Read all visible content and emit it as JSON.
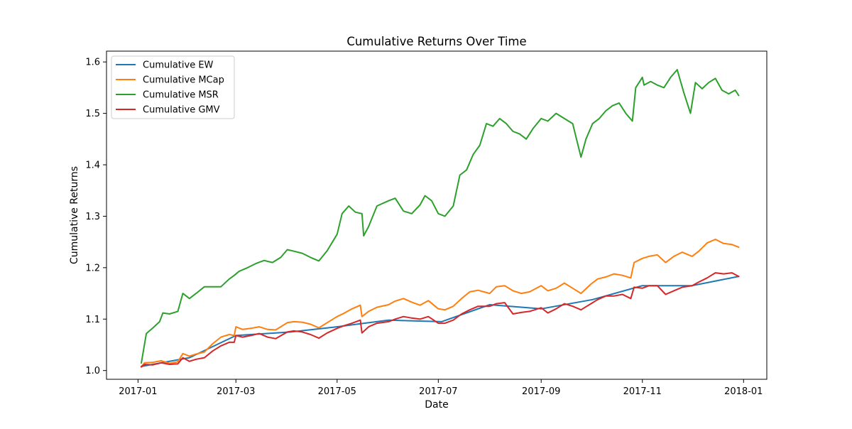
{
  "chart_data": {
    "type": "line",
    "title": "Cumulative Returns Over Time",
    "xlabel": "Date",
    "ylabel": "Cumulative Returns",
    "xlim": [
      "2016-12-13",
      "2018-01-15"
    ],
    "ylim": [
      0.983,
      1.621
    ],
    "x_ticks": [
      "2017-01",
      "2017-03",
      "2017-05",
      "2017-07",
      "2017-09",
      "2017-11",
      "2018-01"
    ],
    "y_ticks": [
      1.0,
      1.1,
      1.2,
      1.3,
      1.4,
      1.5,
      1.6
    ],
    "y_tick_labels": [
      "1.0",
      "1.1",
      "1.2",
      "1.3",
      "1.4",
      "1.5",
      "1.6"
    ],
    "grid": false,
    "legend_position": "top-left",
    "series": [
      {
        "name": "Cumulative EW",
        "color": "#1f77b4",
        "points": [
          [
            "2017-01-03",
            1.008
          ],
          [
            "2017-02-01",
            1.025
          ],
          [
            "2017-03-01",
            1.068
          ],
          [
            "2017-04-03",
            1.075
          ],
          [
            "2017-05-01",
            1.085
          ],
          [
            "2017-06-01",
            1.098
          ],
          [
            "2017-07-03",
            1.095
          ],
          [
            "2017-08-01",
            1.128
          ],
          [
            "2017-09-01",
            1.12
          ],
          [
            "2017-10-02",
            1.138
          ],
          [
            "2017-11-01",
            1.165
          ],
          [
            "2017-12-01",
            1.165
          ],
          [
            "2017-12-29",
            1.183
          ]
        ]
      },
      {
        "name": "Cumulative MCap",
        "color": "#ff7f0e",
        "points": [
          [
            "2017-01-03",
            1.008
          ],
          [
            "2017-01-05",
            1.015
          ],
          [
            "2017-01-10",
            1.016
          ],
          [
            "2017-01-15",
            1.019
          ],
          [
            "2017-01-20",
            1.014
          ],
          [
            "2017-01-25",
            1.017
          ],
          [
            "2017-01-28",
            1.033
          ],
          [
            "2017-02-01",
            1.028
          ],
          [
            "2017-02-05",
            1.032
          ],
          [
            "2017-02-10",
            1.036
          ],
          [
            "2017-02-15",
            1.052
          ],
          [
            "2017-02-20",
            1.065
          ],
          [
            "2017-02-25",
            1.07
          ],
          [
            "2017-02-28",
            1.068
          ],
          [
            "2017-03-01",
            1.085
          ],
          [
            "2017-03-05",
            1.08
          ],
          [
            "2017-03-10",
            1.082
          ],
          [
            "2017-03-15",
            1.085
          ],
          [
            "2017-03-20",
            1.08
          ],
          [
            "2017-03-25",
            1.079
          ],
          [
            "2017-04-01",
            1.093
          ],
          [
            "2017-04-05",
            1.095
          ],
          [
            "2017-04-10",
            1.094
          ],
          [
            "2017-04-15",
            1.09
          ],
          [
            "2017-04-20",
            1.083
          ],
          [
            "2017-04-25",
            1.093
          ],
          [
            "2017-05-01",
            1.105
          ],
          [
            "2017-05-05",
            1.111
          ],
          [
            "2017-05-10",
            1.12
          ],
          [
            "2017-05-15",
            1.127
          ],
          [
            "2017-05-16",
            1.105
          ],
          [
            "2017-05-20",
            1.115
          ],
          [
            "2017-05-25",
            1.123
          ],
          [
            "2017-06-01",
            1.128
          ],
          [
            "2017-06-05",
            1.135
          ],
          [
            "2017-06-10",
            1.14
          ],
          [
            "2017-06-15",
            1.133
          ],
          [
            "2017-06-20",
            1.127
          ],
          [
            "2017-06-25",
            1.136
          ],
          [
            "2017-07-01",
            1.12
          ],
          [
            "2017-07-05",
            1.118
          ],
          [
            "2017-07-10",
            1.125
          ],
          [
            "2017-07-15",
            1.14
          ],
          [
            "2017-07-20",
            1.153
          ],
          [
            "2017-07-25",
            1.156
          ],
          [
            "2017-08-01",
            1.15
          ],
          [
            "2017-08-05",
            1.163
          ],
          [
            "2017-08-10",
            1.165
          ],
          [
            "2017-08-15",
            1.155
          ],
          [
            "2017-08-20",
            1.15
          ],
          [
            "2017-08-25",
            1.153
          ],
          [
            "2017-09-01",
            1.165
          ],
          [
            "2017-09-05",
            1.155
          ],
          [
            "2017-09-10",
            1.16
          ],
          [
            "2017-09-15",
            1.17
          ],
          [
            "2017-09-20",
            1.16
          ],
          [
            "2017-09-25",
            1.15
          ],
          [
            "2017-10-01",
            1.168
          ],
          [
            "2017-10-05",
            1.178
          ],
          [
            "2017-10-10",
            1.182
          ],
          [
            "2017-10-15",
            1.188
          ],
          [
            "2017-10-20",
            1.185
          ],
          [
            "2017-10-25",
            1.18
          ],
          [
            "2017-10-27",
            1.21
          ],
          [
            "2017-11-01",
            1.218
          ],
          [
            "2017-11-05",
            1.222
          ],
          [
            "2017-11-10",
            1.225
          ],
          [
            "2017-11-15",
            1.21
          ],
          [
            "2017-11-20",
            1.222
          ],
          [
            "2017-11-25",
            1.23
          ],
          [
            "2017-12-01",
            1.222
          ],
          [
            "2017-12-05",
            1.232
          ],
          [
            "2017-12-10",
            1.248
          ],
          [
            "2017-12-15",
            1.255
          ],
          [
            "2017-12-20",
            1.247
          ],
          [
            "2017-12-25",
            1.245
          ],
          [
            "2017-12-29",
            1.24
          ]
        ]
      },
      {
        "name": "Cumulative MSR",
        "color": "#2ca02c",
        "points": [
          [
            "2017-01-03",
            1.015
          ],
          [
            "2017-01-06",
            1.072
          ],
          [
            "2017-01-10",
            1.083
          ],
          [
            "2017-01-14",
            1.095
          ],
          [
            "2017-01-16",
            1.112
          ],
          [
            "2017-01-20",
            1.11
          ],
          [
            "2017-01-25",
            1.115
          ],
          [
            "2017-01-28",
            1.15
          ],
          [
            "2017-02-01",
            1.14
          ],
          [
            "2017-02-05",
            1.15
          ],
          [
            "2017-02-10",
            1.163
          ],
          [
            "2017-02-15",
            1.163
          ],
          [
            "2017-02-20",
            1.163
          ],
          [
            "2017-02-25",
            1.178
          ],
          [
            "2017-02-28",
            1.185
          ],
          [
            "2017-03-03",
            1.193
          ],
          [
            "2017-03-08",
            1.2
          ],
          [
            "2017-03-13",
            1.208
          ],
          [
            "2017-03-18",
            1.214
          ],
          [
            "2017-03-23",
            1.21
          ],
          [
            "2017-03-28",
            1.22
          ],
          [
            "2017-04-01",
            1.235
          ],
          [
            "2017-04-05",
            1.232
          ],
          [
            "2017-04-10",
            1.228
          ],
          [
            "2017-04-15",
            1.22
          ],
          [
            "2017-04-20",
            1.213
          ],
          [
            "2017-04-25",
            1.233
          ],
          [
            "2017-05-01",
            1.265
          ],
          [
            "2017-05-04",
            1.305
          ],
          [
            "2017-05-08",
            1.32
          ],
          [
            "2017-05-12",
            1.308
          ],
          [
            "2017-05-16",
            1.305
          ],
          [
            "2017-05-17",
            1.262
          ],
          [
            "2017-05-20",
            1.28
          ],
          [
            "2017-05-25",
            1.32
          ],
          [
            "2017-06-01",
            1.33
          ],
          [
            "2017-06-05",
            1.335
          ],
          [
            "2017-06-10",
            1.31
          ],
          [
            "2017-06-15",
            1.305
          ],
          [
            "2017-06-20",
            1.322
          ],
          [
            "2017-06-23",
            1.34
          ],
          [
            "2017-06-27",
            1.33
          ],
          [
            "2017-07-01",
            1.305
          ],
          [
            "2017-07-05",
            1.3
          ],
          [
            "2017-07-10",
            1.32
          ],
          [
            "2017-07-14",
            1.38
          ],
          [
            "2017-07-18",
            1.39
          ],
          [
            "2017-07-22",
            1.42
          ],
          [
            "2017-07-26",
            1.438
          ],
          [
            "2017-07-30",
            1.48
          ],
          [
            "2017-08-03",
            1.475
          ],
          [
            "2017-08-07",
            1.49
          ],
          [
            "2017-08-11",
            1.48
          ],
          [
            "2017-08-15",
            1.465
          ],
          [
            "2017-08-19",
            1.46
          ],
          [
            "2017-08-23",
            1.45
          ],
          [
            "2017-08-27",
            1.47
          ],
          [
            "2017-09-01",
            1.49
          ],
          [
            "2017-09-05",
            1.485
          ],
          [
            "2017-09-10",
            1.5
          ],
          [
            "2017-09-15",
            1.49
          ],
          [
            "2017-09-20",
            1.48
          ],
          [
            "2017-09-25",
            1.415
          ],
          [
            "2017-09-28",
            1.45
          ],
          [
            "2017-10-02",
            1.48
          ],
          [
            "2017-10-06",
            1.49
          ],
          [
            "2017-10-10",
            1.505
          ],
          [
            "2017-10-14",
            1.515
          ],
          [
            "2017-10-18",
            1.52
          ],
          [
            "2017-10-22",
            1.5
          ],
          [
            "2017-10-26",
            1.485
          ],
          [
            "2017-10-28",
            1.55
          ],
          [
            "2017-11-01",
            1.57
          ],
          [
            "2017-11-02",
            1.555
          ],
          [
            "2017-11-06",
            1.562
          ],
          [
            "2017-11-10",
            1.555
          ],
          [
            "2017-11-14",
            1.55
          ],
          [
            "2017-11-18",
            1.57
          ],
          [
            "2017-11-22",
            1.585
          ],
          [
            "2017-11-26",
            1.54
          ],
          [
            "2017-11-30",
            1.5
          ],
          [
            "2017-12-03",
            1.56
          ],
          [
            "2017-12-07",
            1.548
          ],
          [
            "2017-12-11",
            1.56
          ],
          [
            "2017-12-15",
            1.568
          ],
          [
            "2017-12-19",
            1.545
          ],
          [
            "2017-12-23",
            1.538
          ],
          [
            "2017-12-27",
            1.545
          ],
          [
            "2017-12-29",
            1.535
          ]
        ]
      },
      {
        "name": "Cumulative GMV",
        "color": "#d62728",
        "points": [
          [
            "2017-01-03",
            1.007
          ],
          [
            "2017-01-05",
            1.012
          ],
          [
            "2017-01-10",
            1.011
          ],
          [
            "2017-01-15",
            1.015
          ],
          [
            "2017-01-20",
            1.012
          ],
          [
            "2017-01-25",
            1.013
          ],
          [
            "2017-01-28",
            1.025
          ],
          [
            "2017-02-01",
            1.018
          ],
          [
            "2017-02-05",
            1.022
          ],
          [
            "2017-02-10",
            1.025
          ],
          [
            "2017-02-15",
            1.038
          ],
          [
            "2017-02-20",
            1.048
          ],
          [
            "2017-02-25",
            1.055
          ],
          [
            "2017-02-28",
            1.055
          ],
          [
            "2017-03-01",
            1.068
          ],
          [
            "2017-03-05",
            1.065
          ],
          [
            "2017-03-10",
            1.068
          ],
          [
            "2017-03-15",
            1.072
          ],
          [
            "2017-03-20",
            1.065
          ],
          [
            "2017-03-25",
            1.062
          ],
          [
            "2017-04-01",
            1.075
          ],
          [
            "2017-04-05",
            1.077
          ],
          [
            "2017-04-10",
            1.075
          ],
          [
            "2017-04-15",
            1.07
          ],
          [
            "2017-04-20",
            1.063
          ],
          [
            "2017-04-25",
            1.073
          ],
          [
            "2017-05-01",
            1.082
          ],
          [
            "2017-05-05",
            1.087
          ],
          [
            "2017-05-10",
            1.092
          ],
          [
            "2017-05-15",
            1.098
          ],
          [
            "2017-05-16",
            1.073
          ],
          [
            "2017-05-20",
            1.085
          ],
          [
            "2017-05-25",
            1.092
          ],
          [
            "2017-06-01",
            1.095
          ],
          [
            "2017-06-05",
            1.1
          ],
          [
            "2017-06-10",
            1.105
          ],
          [
            "2017-06-15",
            1.102
          ],
          [
            "2017-06-20",
            1.1
          ],
          [
            "2017-06-25",
            1.105
          ],
          [
            "2017-07-01",
            1.092
          ],
          [
            "2017-07-05",
            1.092
          ],
          [
            "2017-07-10",
            1.098
          ],
          [
            "2017-07-15",
            1.11
          ],
          [
            "2017-07-20",
            1.118
          ],
          [
            "2017-07-25",
            1.125
          ],
          [
            "2017-08-01",
            1.125
          ],
          [
            "2017-08-05",
            1.13
          ],
          [
            "2017-08-10",
            1.132
          ],
          [
            "2017-08-15",
            1.11
          ],
          [
            "2017-08-20",
            1.113
          ],
          [
            "2017-08-25",
            1.115
          ],
          [
            "2017-09-01",
            1.122
          ],
          [
            "2017-09-05",
            1.112
          ],
          [
            "2017-09-10",
            1.12
          ],
          [
            "2017-09-15",
            1.13
          ],
          [
            "2017-09-20",
            1.125
          ],
          [
            "2017-09-25",
            1.118
          ],
          [
            "2017-10-01",
            1.13
          ],
          [
            "2017-10-05",
            1.138
          ],
          [
            "2017-10-10",
            1.145
          ],
          [
            "2017-10-15",
            1.145
          ],
          [
            "2017-10-20",
            1.148
          ],
          [
            "2017-10-25",
            1.14
          ],
          [
            "2017-10-27",
            1.162
          ],
          [
            "2017-11-01",
            1.16
          ],
          [
            "2017-11-05",
            1.165
          ],
          [
            "2017-11-10",
            1.165
          ],
          [
            "2017-11-15",
            1.148
          ],
          [
            "2017-11-20",
            1.155
          ],
          [
            "2017-11-25",
            1.162
          ],
          [
            "2017-12-01",
            1.165
          ],
          [
            "2017-12-05",
            1.172
          ],
          [
            "2017-12-10",
            1.18
          ],
          [
            "2017-12-15",
            1.19
          ],
          [
            "2017-12-20",
            1.188
          ],
          [
            "2017-12-25",
            1.19
          ],
          [
            "2017-12-29",
            1.183
          ]
        ]
      }
    ]
  }
}
